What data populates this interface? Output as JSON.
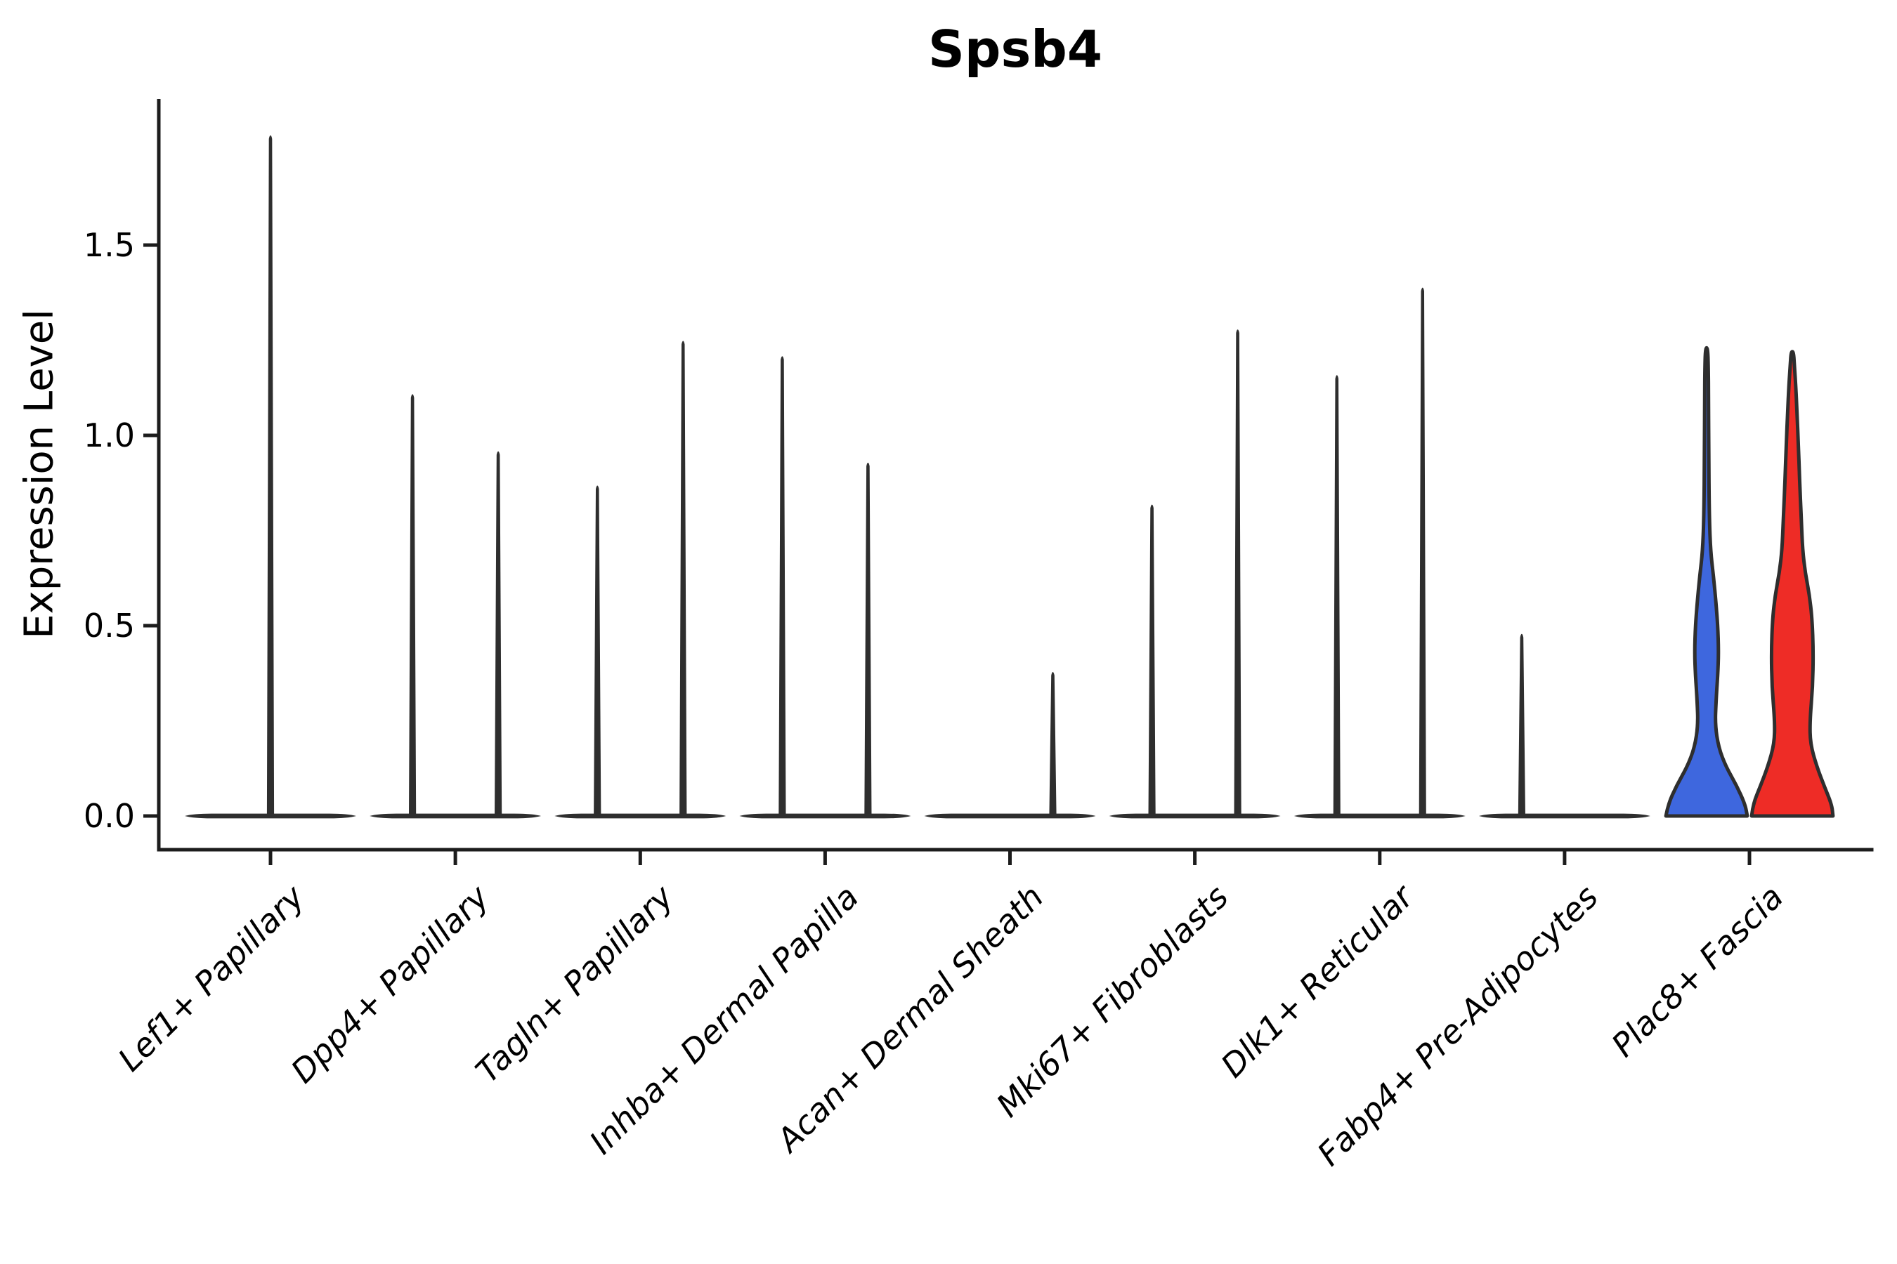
{
  "title": "Spsb4",
  "y_axis": {
    "label": "Expression Level",
    "ticks": [
      "0.0",
      "0.5",
      "1.0",
      "1.5"
    ]
  },
  "chart_data": {
    "type": "violin",
    "title": "Spsb4",
    "xlabel": "",
    "ylabel": "Expression Level",
    "yticks": [
      0.0,
      0.5,
      1.0,
      1.5
    ],
    "ylim": [
      0,
      1.88
    ],
    "grid": false,
    "legend_position": "none",
    "outline_color": "#2e2e2e",
    "axis_color": "#1c1c1c",
    "split_colors": {
      "blue": "#3e67de",
      "red": "#ee2c26"
    },
    "categories": [
      "Lef1+ Papillary",
      "Dpp4+ Papillary",
      "Tagln+ Papillary",
      "Inhba+ Dermal Papilla",
      "Acan+ Dermal Sheath",
      "Mki67+ Fibroblasts",
      "Dlk1+ Reticular",
      "Fabp4+ Pre-Adipocytes",
      "Plac8+ Fascia"
    ],
    "violins": [
      {
        "category": "Lef1+ Papillary",
        "baseline": true,
        "marks": [
          {
            "pos": "center",
            "shape": "spike",
            "peak": 1.79
          }
        ]
      },
      {
        "category": "Dpp4+ Papillary",
        "baseline": true,
        "marks": [
          {
            "pos": "left",
            "shape": "spike",
            "peak": 1.11
          },
          {
            "pos": "right",
            "shape": "spike",
            "peak": 0.96
          }
        ]
      },
      {
        "category": "Tagln+ Papillary",
        "baseline": true,
        "marks": [
          {
            "pos": "left",
            "shape": "spike",
            "peak": 0.87
          },
          {
            "pos": "right",
            "shape": "spike",
            "peak": 1.25
          }
        ]
      },
      {
        "category": "Inhba+ Dermal Papilla",
        "baseline": true,
        "marks": [
          {
            "pos": "left",
            "shape": "spike",
            "peak": 1.21
          },
          {
            "pos": "right",
            "shape": "spike",
            "peak": 0.93
          }
        ]
      },
      {
        "category": "Acan+ Dermal Sheath",
        "baseline": true,
        "marks": [
          {
            "pos": "right",
            "shape": "spike",
            "peak": 0.38
          }
        ]
      },
      {
        "category": "Mki67+ Fibroblasts",
        "baseline": true,
        "marks": [
          {
            "pos": "left",
            "shape": "spike",
            "peak": 0.82
          },
          {
            "pos": "right",
            "shape": "spike",
            "peak": 1.28
          }
        ]
      },
      {
        "category": "Dlk1+ Reticular",
        "baseline": true,
        "marks": [
          {
            "pos": "left",
            "shape": "spike",
            "peak": 1.16
          },
          {
            "pos": "right",
            "shape": "spike",
            "peak": 1.39
          }
        ]
      },
      {
        "category": "Fabp4+ Pre-Adipocytes",
        "baseline": true,
        "marks": [
          {
            "pos": "left",
            "shape": "spike",
            "peak": 0.48
          }
        ]
      },
      {
        "category": "Plac8+ Fascia",
        "baseline": false,
        "marks": [
          {
            "pos": "left",
            "shape": "violin",
            "color": "blue",
            "peak": 1.23,
            "profile": [
              [
                0.0,
                0.95
              ],
              [
                0.03,
                0.9
              ],
              [
                0.08,
                0.7
              ],
              [
                0.13,
                0.45
              ],
              [
                0.18,
                0.28
              ],
              [
                0.24,
                0.2
              ],
              [
                0.3,
                0.22
              ],
              [
                0.37,
                0.26
              ],
              [
                0.43,
                0.28
              ],
              [
                0.5,
                0.26
              ],
              [
                0.56,
                0.22
              ],
              [
                0.63,
                0.16
              ],
              [
                0.7,
                0.09
              ],
              [
                0.8,
                0.06
              ],
              [
                0.95,
                0.05
              ],
              [
                1.1,
                0.045
              ],
              [
                1.18,
                0.04
              ],
              [
                1.23,
                0.025
              ]
            ]
          },
          {
            "pos": "right",
            "shape": "violin",
            "color": "red",
            "peak": 1.22,
            "profile": [
              [
                0.0,
                0.95
              ],
              [
                0.03,
                0.92
              ],
              [
                0.08,
                0.74
              ],
              [
                0.13,
                0.57
              ],
              [
                0.19,
                0.42
              ],
              [
                0.25,
                0.41
              ],
              [
                0.34,
                0.475
              ],
              [
                0.43,
                0.49
              ],
              [
                0.52,
                0.46
              ],
              [
                0.58,
                0.4
              ],
              [
                0.64,
                0.3
              ],
              [
                0.7,
                0.24
              ],
              [
                0.78,
                0.21
              ],
              [
                0.88,
                0.17
              ],
              [
                0.98,
                0.14
              ],
              [
                1.06,
                0.11
              ],
              [
                1.13,
                0.08
              ],
              [
                1.18,
                0.05
              ],
              [
                1.22,
                0.03
              ]
            ]
          }
        ]
      }
    ]
  }
}
